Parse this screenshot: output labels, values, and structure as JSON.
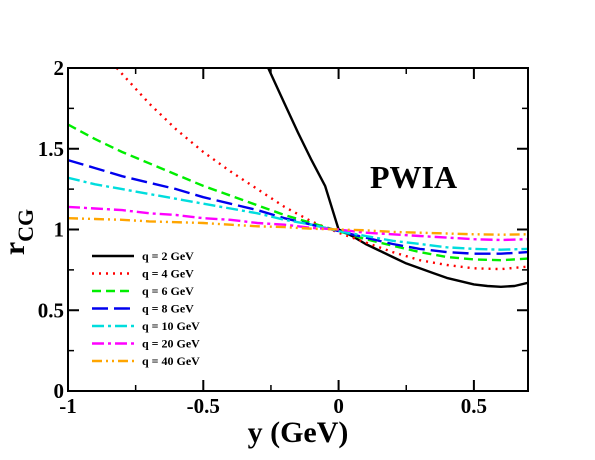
{
  "chart_data": {
    "type": "line",
    "title": "",
    "xlabel": "y (GeV)",
    "ylabel_main": "r",
    "ylabel_sub": "CG",
    "xlim": [
      -1,
      0.7
    ],
    "ylim": [
      0,
      2
    ],
    "x_ticks": [
      -1,
      -0.5,
      0,
      0.5
    ],
    "x_tick_labels": [
      "-1",
      "-0.5",
      "0",
      "0.5"
    ],
    "y_ticks": [
      0,
      0.5,
      1,
      1.5,
      2
    ],
    "y_tick_labels": [
      "0",
      "0.5",
      "1",
      "1.5",
      "2"
    ],
    "annotation": "PWIA",
    "grid": false,
    "legend_position": "lower-left",
    "series": [
      {
        "name": "q = 2 GeV",
        "color": "#000000",
        "dash": "solid",
        "x": [
          -0.26,
          -0.2,
          -0.15,
          -0.1,
          -0.05,
          0,
          0.05,
          0.1,
          0.15,
          0.2,
          0.25,
          0.3,
          0.35,
          0.4,
          0.45,
          0.5,
          0.55,
          0.6,
          0.65,
          0.7
        ],
        "y": [
          2.0,
          1.78,
          1.6,
          1.43,
          1.27,
          1.0,
          0.96,
          0.91,
          0.87,
          0.83,
          0.79,
          0.76,
          0.73,
          0.7,
          0.68,
          0.66,
          0.65,
          0.645,
          0.65,
          0.67
        ]
      },
      {
        "name": "q = 4 GeV",
        "color": "#ff0000",
        "dash": "dot",
        "x": [
          -0.82,
          -0.7,
          -0.6,
          -0.5,
          -0.4,
          -0.3,
          -0.2,
          -0.1,
          0,
          0.1,
          0.2,
          0.3,
          0.4,
          0.5,
          0.6,
          0.7
        ],
        "y": [
          2.0,
          1.78,
          1.62,
          1.48,
          1.36,
          1.25,
          1.14,
          1.05,
          0.98,
          0.92,
          0.86,
          0.81,
          0.78,
          0.76,
          0.755,
          0.77
        ]
      },
      {
        "name": "q = 6 GeV",
        "color": "#00ee00",
        "dash": "dash",
        "x": [
          -1,
          -0.9,
          -0.8,
          -0.7,
          -0.6,
          -0.5,
          -0.4,
          -0.3,
          -0.2,
          -0.1,
          0,
          0.1,
          0.2,
          0.3,
          0.4,
          0.5,
          0.6,
          0.7
        ],
        "y": [
          1.65,
          1.56,
          1.48,
          1.41,
          1.34,
          1.27,
          1.21,
          1.15,
          1.09,
          1.04,
          0.99,
          0.94,
          0.9,
          0.86,
          0.83,
          0.815,
          0.81,
          0.82
        ]
      },
      {
        "name": "q = 8 GeV",
        "color": "#0000ee",
        "dash": "longdash",
        "x": [
          -1,
          -0.9,
          -0.8,
          -0.7,
          -0.6,
          -0.5,
          -0.4,
          -0.3,
          -0.2,
          -0.1,
          0,
          0.1,
          0.2,
          0.3,
          0.4,
          0.5,
          0.6,
          0.7
        ],
        "y": [
          1.43,
          1.38,
          1.33,
          1.29,
          1.25,
          1.2,
          1.16,
          1.12,
          1.07,
          1.03,
          0.99,
          0.95,
          0.91,
          0.88,
          0.86,
          0.85,
          0.85,
          0.86
        ]
      },
      {
        "name": "q = 10 GeV",
        "color": "#00dddd",
        "dash": "dashdot",
        "x": [
          -1,
          -0.9,
          -0.8,
          -0.7,
          -0.6,
          -0.5,
          -0.4,
          -0.3,
          -0.2,
          -0.1,
          0,
          0.1,
          0.2,
          0.3,
          0.4,
          0.5,
          0.6,
          0.7
        ],
        "y": [
          1.32,
          1.28,
          1.25,
          1.22,
          1.19,
          1.16,
          1.13,
          1.1,
          1.06,
          1.03,
          0.99,
          0.96,
          0.93,
          0.91,
          0.89,
          0.88,
          0.875,
          0.88
        ]
      },
      {
        "name": "q = 20 GeV",
        "color": "#ff00ff",
        "dash": "dashdot",
        "x": [
          -1,
          -0.9,
          -0.8,
          -0.7,
          -0.6,
          -0.5,
          -0.4,
          -0.3,
          -0.2,
          -0.1,
          0,
          0.1,
          0.2,
          0.3,
          0.4,
          0.5,
          0.6,
          0.7
        ],
        "y": [
          1.14,
          1.13,
          1.12,
          1.1,
          1.09,
          1.07,
          1.06,
          1.04,
          1.03,
          1.01,
          1.0,
          0.98,
          0.97,
          0.96,
          0.95,
          0.94,
          0.935,
          0.94
        ]
      },
      {
        "name": "q = 40 GeV",
        "color": "#ffa500",
        "dash": "dashdotdot",
        "x": [
          -1,
          -0.9,
          -0.8,
          -0.7,
          -0.6,
          -0.5,
          -0.4,
          -0.3,
          -0.2,
          -0.1,
          0,
          0.1,
          0.2,
          0.3,
          0.4,
          0.5,
          0.6,
          0.7
        ],
        "y": [
          1.07,
          1.065,
          1.06,
          1.05,
          1.045,
          1.04,
          1.03,
          1.02,
          1.015,
          1.005,
          1.0,
          0.995,
          0.985,
          0.98,
          0.975,
          0.97,
          0.968,
          0.97
        ]
      }
    ]
  }
}
